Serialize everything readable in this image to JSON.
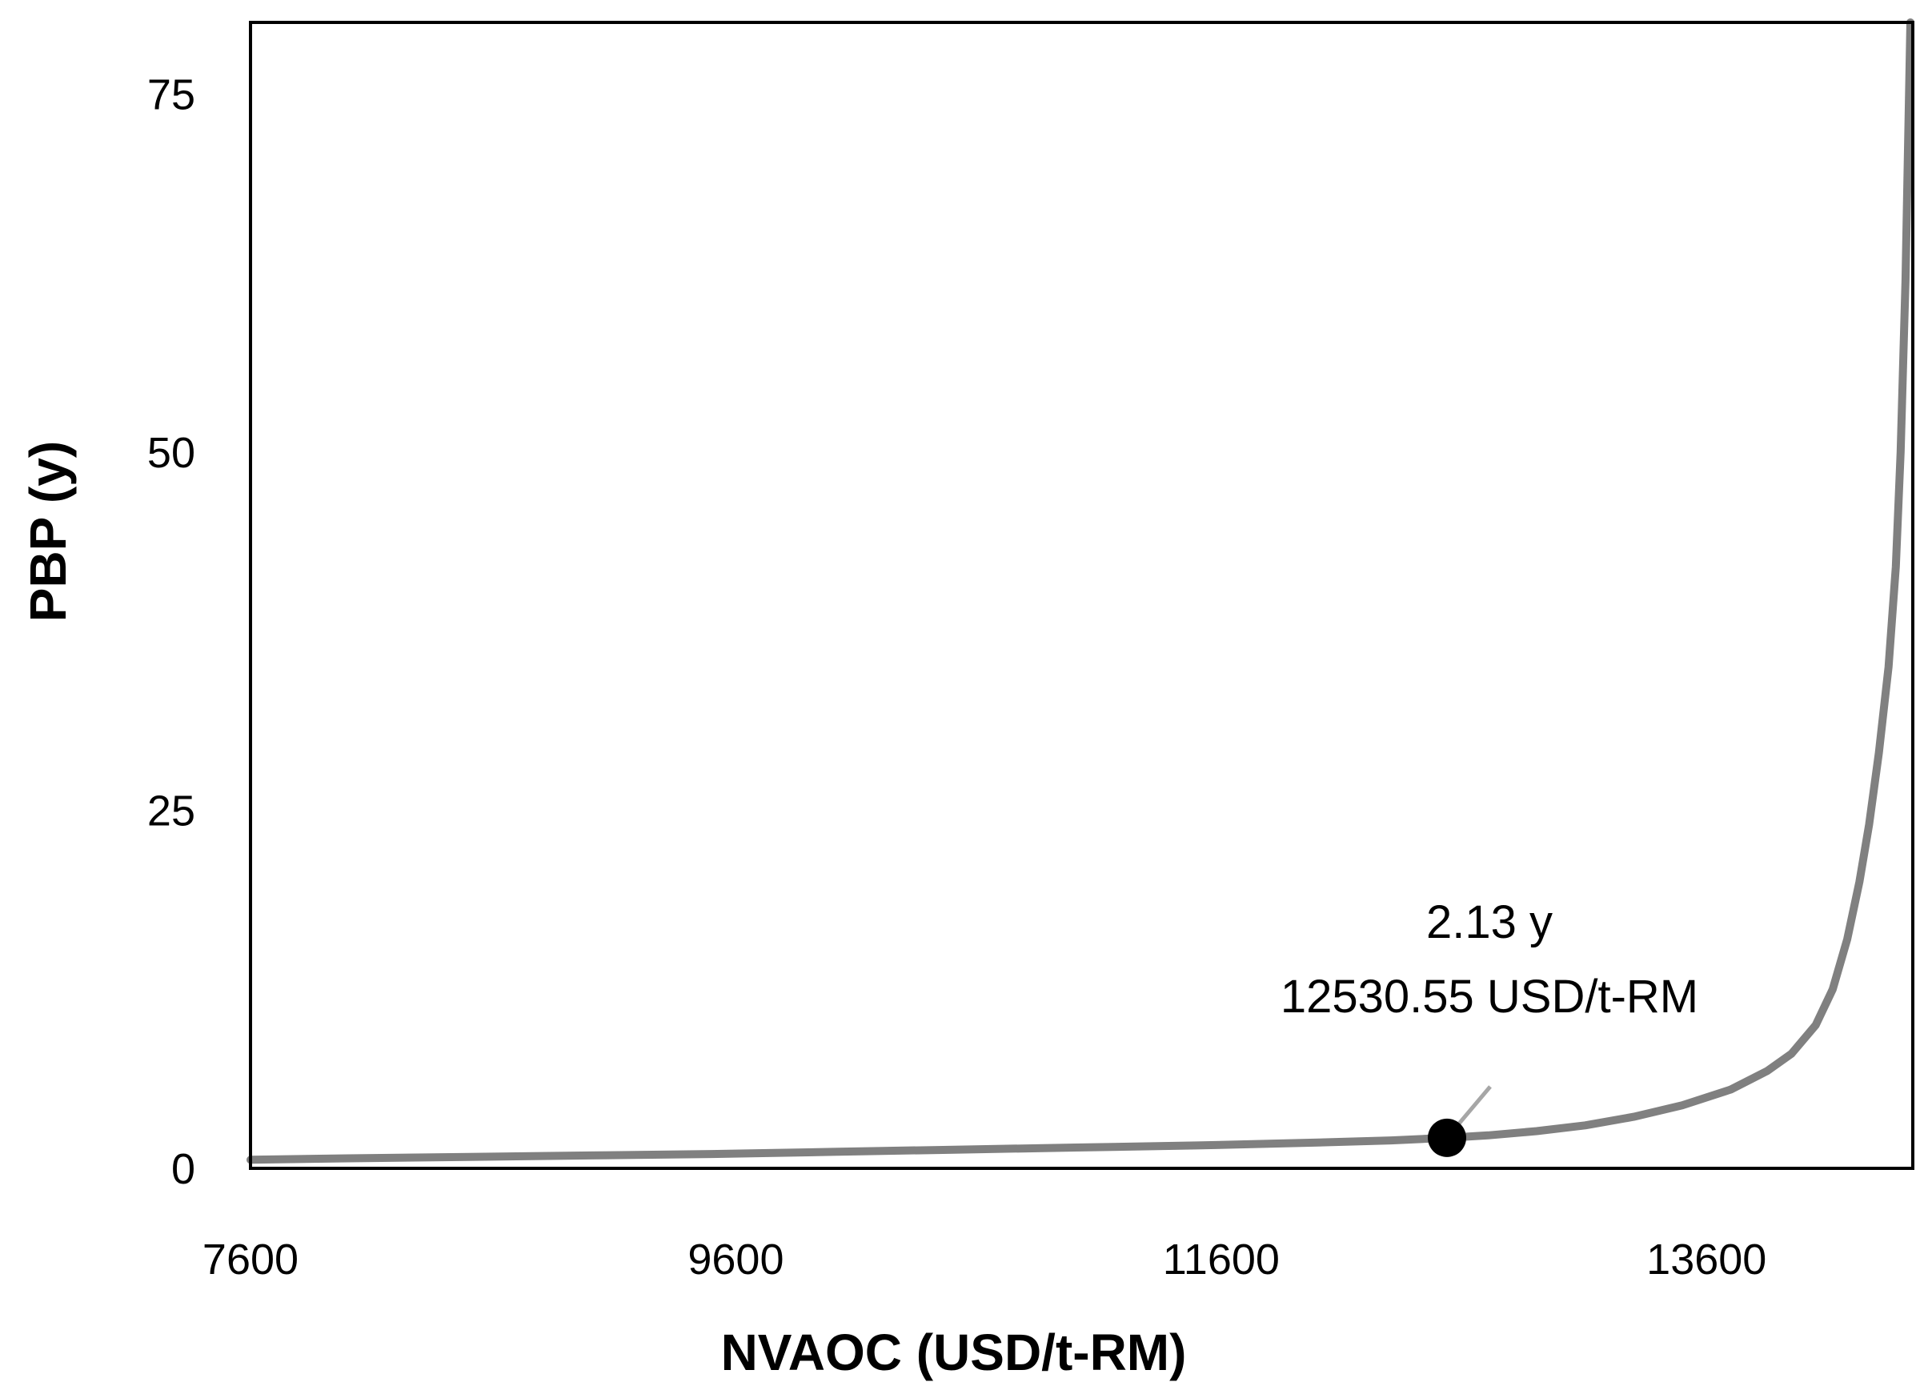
{
  "chart_data": {
    "type": "line",
    "title": "",
    "xlabel": "NVAOC (USD/t-RM)",
    "ylabel": "PBP (y)",
    "xlim": [
      7600,
      14450
    ],
    "ylim": [
      0,
      80
    ],
    "xticks": [
      7600,
      9600,
      11600,
      13600
    ],
    "yticks": [
      0,
      25,
      50,
      75
    ],
    "grid": false,
    "legend": "none",
    "colors": {
      "line": "#808080",
      "marker": "#000000",
      "leader": "#a6a6a6",
      "frame": "#000000"
    },
    "series": [
      {
        "x": [
          7600,
          8000,
          8500,
          9000,
          9500,
          10000,
          10500,
          11000,
          11500,
          12000,
          12300,
          12530.55,
          12700,
          12900,
          13100,
          13300,
          13500,
          13700,
          13850,
          13950,
          14050,
          14120,
          14180,
          14230,
          14270,
          14310,
          14350,
          14380,
          14400,
          14420,
          14440
        ],
        "y": [
          0.6,
          0.7,
          0.8,
          0.9,
          1.0,
          1.15,
          1.3,
          1.45,
          1.6,
          1.8,
          1.95,
          2.13,
          2.3,
          2.6,
          3.0,
          3.6,
          4.4,
          5.5,
          6.8,
          8.0,
          10.0,
          12.5,
          16.0,
          20.0,
          24.0,
          29.0,
          35.0,
          42.0,
          50.0,
          62.0,
          80.0
        ]
      }
    ],
    "highlight": {
      "x": 12530.55,
      "y": 2.13,
      "label_line1": "2.13 y",
      "label_line2": "12530.55 USD/t-RM"
    }
  }
}
